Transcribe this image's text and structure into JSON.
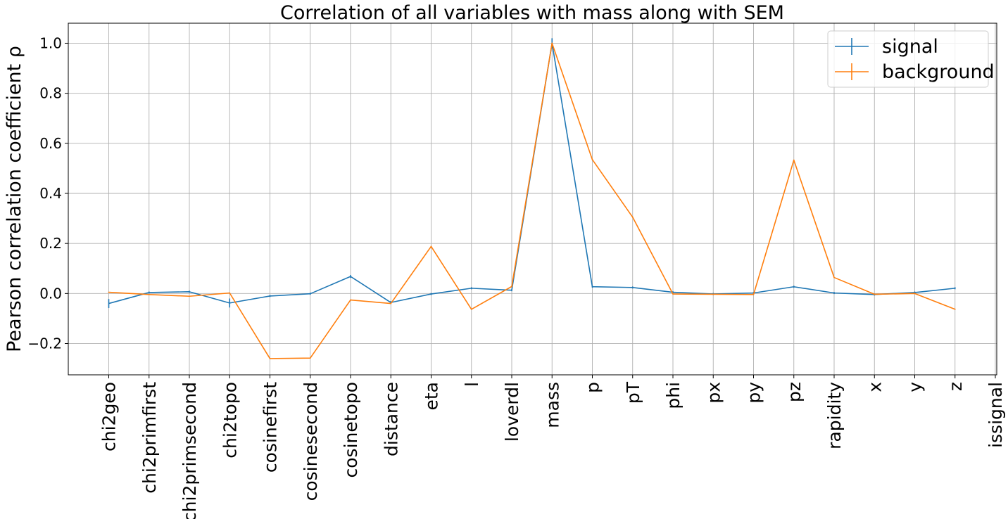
{
  "chart_data": {
    "type": "line",
    "title": "Correlation of all variables with mass along with SEM",
    "xlabel": "",
    "ylabel": "Pearson correlation coefficient ρ",
    "categories": [
      "chi2geo",
      "chi2primfirst",
      "chi2primsecond",
      "chi2topo",
      "cosinefirst",
      "cosinesecond",
      "cosinetopo",
      "distance",
      "eta",
      "l",
      "loverdl",
      "mass",
      "p",
      "pT",
      "phi",
      "px",
      "py",
      "pz",
      "rapidity",
      "x",
      "y",
      "z",
      "issignal"
    ],
    "ylim": [
      -0.325,
      1.08
    ],
    "yticks": [
      -0.2,
      0.0,
      0.2,
      0.4,
      0.6,
      0.8,
      1.0
    ],
    "ytick_labels": [
      "−0.2",
      "0.0",
      "0.2",
      "0.4",
      "0.6",
      "0.8",
      "1.0"
    ],
    "grid": true,
    "legend_position": "top-right",
    "series": [
      {
        "name": "signal",
        "color": "#1f77b4",
        "values": [
          -0.04,
          0.004,
          0.007,
          -0.038,
          -0.01,
          -0.001,
          0.068,
          -0.036,
          -0.002,
          0.021,
          0.013,
          1.0,
          0.027,
          0.024,
          0.005,
          -0.002,
          0.002,
          0.027,
          0.002,
          -0.004,
          0.004,
          0.021,
          null
        ],
        "errors": [
          0.018,
          0.004,
          0.004,
          0.018,
          0.004,
          0.004,
          0.006,
          0.006,
          0.004,
          0.004,
          0.004,
          0.02,
          0.004,
          0.004,
          0.004,
          0.004,
          0.004,
          0.004,
          0.004,
          0.004,
          0.004,
          0.004,
          null
        ]
      },
      {
        "name": "background",
        "color": "#ff7f0e",
        "values": [
          0.005,
          -0.004,
          -0.011,
          0.002,
          -0.26,
          -0.258,
          -0.026,
          -0.04,
          0.188,
          -0.063,
          0.028,
          1.0,
          0.535,
          0.305,
          -0.002,
          -0.003,
          -0.004,
          0.533,
          0.064,
          -0.003,
          0.0,
          -0.063,
          null
        ],
        "errors": [
          0.002,
          0.002,
          0.002,
          0.002,
          0.002,
          0.002,
          0.002,
          0.002,
          0.002,
          0.002,
          0.002,
          0.002,
          0.002,
          0.002,
          0.002,
          0.002,
          0.002,
          0.002,
          0.002,
          0.002,
          0.002,
          0.002,
          null
        ]
      }
    ]
  }
}
